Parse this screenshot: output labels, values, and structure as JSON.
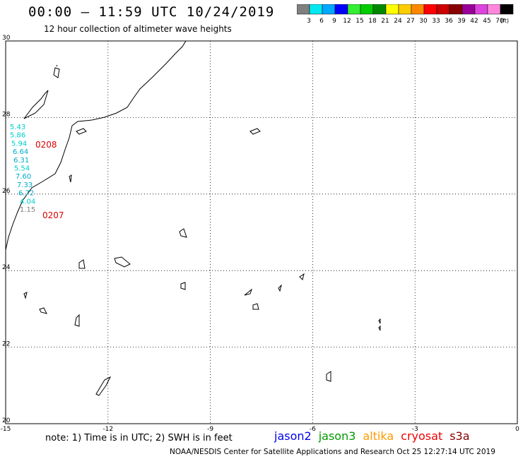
{
  "header": {
    "title": "00:00 – 11:59 UTC 10/24/2019",
    "subtitle": "12 hour collection of altimeter wave heights"
  },
  "legend": {
    "unit": "(ft)",
    "bins": [
      {
        "label": "3",
        "color": "#808080"
      },
      {
        "label": "6",
        "color": "#00e8f0"
      },
      {
        "label": "9",
        "color": "#00a8ff"
      },
      {
        "label": "12",
        "color": "#0000ff"
      },
      {
        "label": "15",
        "color": "#33ee33"
      },
      {
        "label": "18",
        "color": "#00cc00"
      },
      {
        "label": "21",
        "color": "#008800"
      },
      {
        "label": "24",
        "color": "#ffff00"
      },
      {
        "label": "27",
        "color": "#ffcc00"
      },
      {
        "label": "30",
        "color": "#ff8800"
      },
      {
        "label": "33",
        "color": "#ff0000"
      },
      {
        "label": "36",
        "color": "#cc0000"
      },
      {
        "label": "39",
        "color": "#880000"
      },
      {
        "label": "42",
        "color": "#990099"
      },
      {
        "label": "45",
        "color": "#dd44dd"
      },
      {
        "label": "70",
        "color": "#ff88dd"
      },
      {
        "label": "",
        "color": "#000000"
      }
    ]
  },
  "map": {
    "lon_ticks": [
      "-15",
      "-12",
      "-9",
      "-6",
      "-3",
      "0"
    ],
    "lat_ticks": [
      "30",
      "28",
      "26",
      "24",
      "22",
      "20"
    ],
    "grid": "dotted",
    "coast_color": "#000000"
  },
  "passes": [
    {
      "id": "0208",
      "color": "#dd0000"
    },
    {
      "id": "0207",
      "color": "#dd0000"
    }
  ],
  "swh_labels": [
    {
      "value": "5.43",
      "color": "#00cccc"
    },
    {
      "value": "5.86",
      "color": "#00cccc"
    },
    {
      "value": "5.94",
      "color": "#00cccc"
    },
    {
      "value": "6.64",
      "color": "#00aacc"
    },
    {
      "value": "6.31",
      "color": "#00aacc"
    },
    {
      "value": "5.54",
      "color": "#00cccc"
    },
    {
      "value": "7.60",
      "color": "#00aacc"
    },
    {
      "value": "7.33",
      "color": "#00aacc"
    },
    {
      "value": "6.72",
      "color": "#00aacc"
    },
    {
      "value": "4.04",
      "color": "#00cccc"
    },
    {
      "value": "1.15",
      "color": "#808080"
    }
  ],
  "footer": {
    "note": "note:  1) Time is in UTC;  2) SWH is in feet",
    "credit": "NOAA/NESDIS Center for Satellite Applications and Research    Oct 25 12:27:14 UTC 2019"
  },
  "satellites": [
    {
      "name": "jason2",
      "color": "#0000ee"
    },
    {
      "name": "jason3",
      "color": "#009900"
    },
    {
      "name": "altika",
      "color": "#ff9900"
    },
    {
      "name": "cryosat",
      "color": "#ee0000"
    },
    {
      "name": "s3a",
      "color": "#880000"
    }
  ]
}
